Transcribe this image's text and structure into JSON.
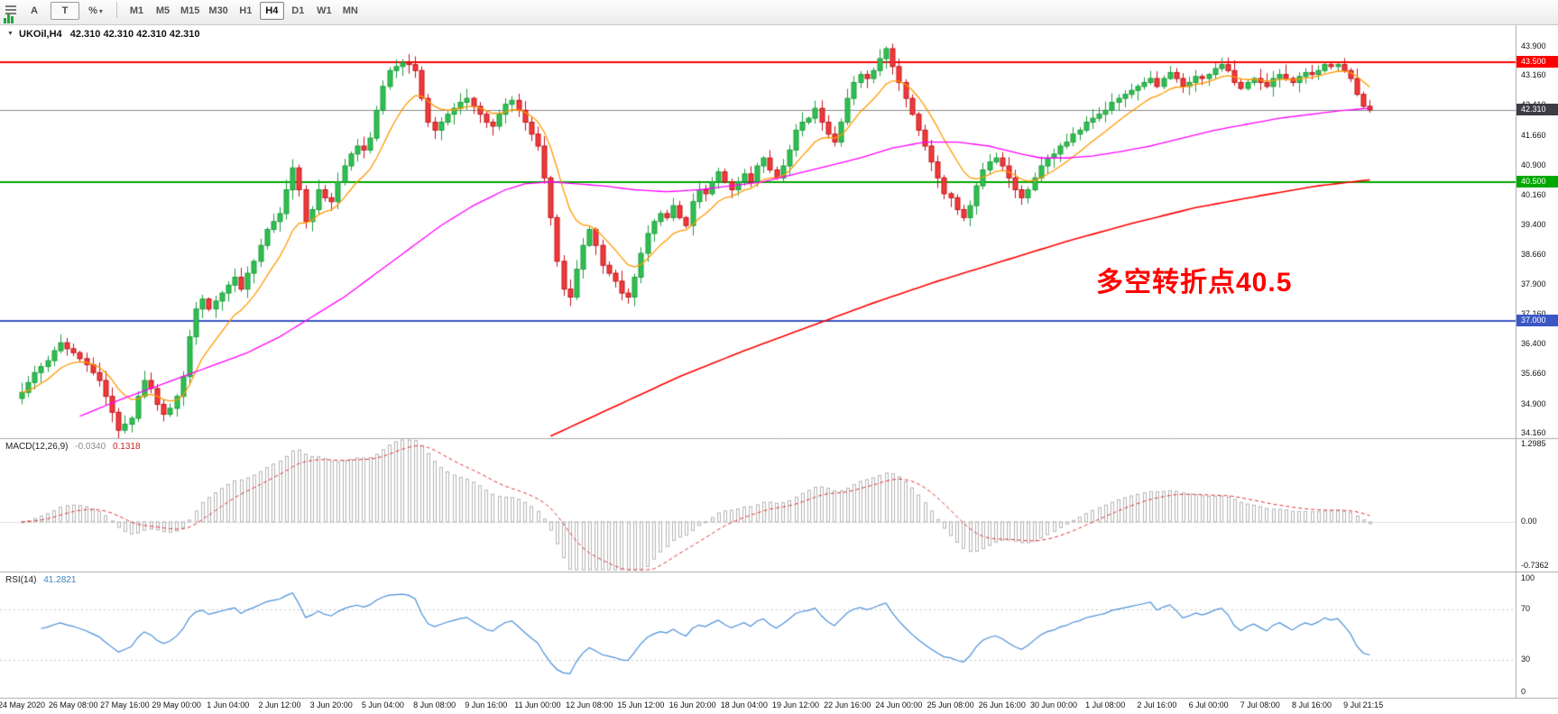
{
  "toolbar": {
    "text_label_button": "A",
    "textbox_button": "T",
    "percent_icon": "%",
    "caret": "▾",
    "timeframes": [
      "M1",
      "M5",
      "M15",
      "M30",
      "H1",
      "H4",
      "D1",
      "W1",
      "MN"
    ],
    "active_timeframe": "H4"
  },
  "chart": {
    "title_marker": "▼",
    "symbol_title": "UKOil,H4",
    "ohlc": "42.310 42.310 42.310 42.310",
    "badges": [
      {
        "value": "43.500",
        "price": 43.5,
        "color": "#ff0000"
      },
      {
        "value": "42.310",
        "price": 42.31,
        "color": "#3c3c46"
      },
      {
        "value": "40.500",
        "price": 40.5,
        "color": "#00a800"
      },
      {
        "value": "37.000",
        "price": 37.0,
        "color": "#3a57c4"
      }
    ]
  },
  "chart_data": {
    "type": "candlestick",
    "symbol": "UKOil",
    "timeframe": "H4",
    "annotation": {
      "text": "多空转折点40.5",
      "color": "#ff0000"
    },
    "price_ticks": [
      "43.900",
      "43.160",
      "42.410",
      "41.660",
      "40.900",
      "40.160",
      "39.400",
      "38.660",
      "37.900",
      "37.160",
      "36.400",
      "35.660",
      "34.900",
      "34.160"
    ],
    "price_ylim": [
      34.05,
      44.44
    ],
    "x_labels": [
      "24 May 2020",
      "26 May 08:00",
      "27 May 16:00",
      "29 May 00:00",
      "1 Jun 04:00",
      "2 Jun 12:00",
      "3 Jun 20:00",
      "5 Jun 04:00",
      "8 Jun 08:00",
      "9 Jun 16:00",
      "11 Jun 00:00",
      "12 Jun 08:00",
      "15 Jun 12:00",
      "16 Jun 20:00",
      "18 Jun 04:00",
      "19 Jun 12:00",
      "22 Jun 16:00",
      "24 Jun 00:00",
      "25 Jun 08:00",
      "26 Jun 16:00",
      "30 Jun 00:00",
      "1 Jul 08:00",
      "2 Jul 16:00",
      "6 Jul 00:00",
      "7 Jul 08:00",
      "8 Jul 16:00",
      "9 Jul 21:15"
    ],
    "bars_per_label": 8,
    "horizontal_lines": [
      {
        "price": 43.5,
        "color": "#ff0000",
        "width": 2
      },
      {
        "price": 42.31,
        "color": "#8a8a8a",
        "width": 1
      },
      {
        "price": 40.5,
        "color": "#00a800",
        "width": 2
      },
      {
        "price": 37.0,
        "color": "#3a57c4",
        "width": 2
      }
    ],
    "candles": {
      "first_open": 35.05,
      "up_color": "#2fbf52",
      "down_color": "#f03a3a",
      "closes": [
        35.2,
        35.45,
        35.7,
        35.85,
        36.0,
        36.25,
        36.45,
        36.3,
        36.2,
        36.05,
        35.9,
        35.7,
        35.5,
        35.1,
        34.7,
        34.25,
        34.4,
        34.55,
        35.1,
        35.5,
        35.3,
        34.9,
        34.65,
        34.8,
        35.1,
        35.6,
        36.6,
        37.3,
        37.55,
        37.3,
        37.5,
        37.7,
        37.9,
        38.1,
        37.8,
        38.2,
        38.5,
        38.9,
        39.3,
        39.5,
        39.7,
        40.3,
        40.85,
        40.3,
        39.5,
        39.8,
        40.3,
        40.1,
        40.0,
        40.5,
        40.9,
        41.2,
        41.4,
        41.3,
        41.6,
        42.3,
        42.9,
        43.3,
        43.4,
        43.5,
        43.45,
        43.3,
        42.6,
        42.0,
        41.8,
        42.0,
        42.2,
        42.35,
        42.5,
        42.6,
        42.4,
        42.2,
        42.0,
        41.9,
        42.2,
        42.45,
        42.55,
        42.3,
        42.0,
        41.7,
        41.4,
        40.6,
        39.6,
        38.5,
        37.8,
        37.6,
        38.3,
        38.9,
        39.3,
        38.9,
        38.4,
        38.2,
        38.0,
        37.7,
        37.6,
        38.1,
        38.7,
        39.2,
        39.5,
        39.7,
        39.6,
        39.9,
        39.6,
        39.4,
        40.0,
        40.3,
        40.2,
        40.5,
        40.75,
        40.5,
        40.3,
        40.5,
        40.7,
        40.5,
        40.9,
        41.1,
        40.8,
        40.6,
        40.9,
        41.3,
        41.8,
        42.0,
        42.1,
        42.35,
        42.0,
        41.7,
        41.5,
        42.0,
        42.6,
        43.0,
        43.2,
        43.1,
        43.3,
        43.6,
        43.85,
        43.4,
        43.0,
        42.6,
        42.2,
        41.8,
        41.4,
        41.0,
        40.6,
        40.2,
        40.1,
        39.8,
        39.6,
        39.9,
        40.4,
        40.8,
        41.0,
        41.1,
        40.9,
        40.6,
        40.3,
        40.1,
        40.3,
        40.6,
        40.9,
        41.1,
        41.2,
        41.4,
        41.5,
        41.7,
        41.8,
        42.0,
        42.1,
        42.2,
        42.3,
        42.5,
        42.6,
        42.7,
        42.8,
        42.9,
        43.0,
        43.1,
        42.9,
        43.1,
        43.25,
        43.1,
        42.9,
        43.0,
        43.15,
        43.1,
        43.2,
        43.35,
        43.45,
        43.3,
        43.0,
        42.85,
        43.0,
        43.1,
        43.0,
        42.9,
        43.1,
        43.2,
        43.1,
        43.0,
        43.15,
        43.25,
        43.2,
        43.3,
        43.45,
        43.4,
        43.45,
        43.3,
        43.1,
        42.7,
        42.4,
        42.31
      ]
    },
    "moving_averages": {
      "fast": {
        "color": "#ff9900",
        "type": "ema",
        "period": 10
      },
      "medium": {
        "color": "#ff00ff",
        "points": [
          [
            9,
            34.6
          ],
          [
            15,
            35.0
          ],
          [
            20,
            35.3
          ],
          [
            25,
            35.6
          ],
          [
            30,
            35.9
          ],
          [
            35,
            36.2
          ],
          [
            40,
            36.6
          ],
          [
            45,
            37.1
          ],
          [
            50,
            37.6
          ],
          [
            55,
            38.2
          ],
          [
            60,
            38.8
          ],
          [
            65,
            39.4
          ],
          [
            70,
            39.9
          ],
          [
            75,
            40.3
          ],
          [
            78,
            40.45
          ],
          [
            82,
            40.5
          ],
          [
            86,
            40.45
          ],
          [
            90,
            40.4
          ],
          [
            95,
            40.3
          ],
          [
            100,
            40.25
          ],
          [
            105,
            40.3
          ],
          [
            110,
            40.4
          ],
          [
            115,
            40.5
          ],
          [
            120,
            40.7
          ],
          [
            125,
            40.9
          ],
          [
            130,
            41.1
          ],
          [
            135,
            41.35
          ],
          [
            140,
            41.5
          ],
          [
            145,
            41.5
          ],
          [
            150,
            41.4
          ],
          [
            155,
            41.2
          ],
          [
            158,
            41.1
          ],
          [
            162,
            41.1
          ],
          [
            166,
            41.15
          ],
          [
            170,
            41.25
          ],
          [
            175,
            41.4
          ],
          [
            180,
            41.6
          ],
          [
            185,
            41.8
          ],
          [
            190,
            41.95
          ],
          [
            195,
            42.1
          ],
          [
            200,
            42.2
          ],
          [
            205,
            42.3
          ],
          [
            209,
            42.35
          ]
        ]
      },
      "slow": {
        "color": "#ff0000",
        "points": [
          [
            82,
            34.1
          ],
          [
            92,
            34.85
          ],
          [
            102,
            35.6
          ],
          [
            112,
            36.25
          ],
          [
            122,
            36.85
          ],
          [
            132,
            37.45
          ],
          [
            142,
            38.0
          ],
          [
            152,
            38.5
          ],
          [
            162,
            39.0
          ],
          [
            172,
            39.45
          ],
          [
            182,
            39.85
          ],
          [
            192,
            40.15
          ],
          [
            201,
            40.4
          ],
          [
            209,
            40.55
          ]
        ]
      }
    },
    "macd": {
      "label": "MACD(12,26,9)",
      "values": [
        "-0.0340",
        "0.1318"
      ],
      "params": [
        12,
        26,
        9
      ],
      "axis_labels": [
        "1.2985",
        "0.00",
        "-0.7362"
      ],
      "ylim": [
        -0.825,
        1.388
      ],
      "histogram_color": "#b4b4b4",
      "signal_color": "#e03333"
    },
    "rsi": {
      "label": "RSI(14)",
      "value": "41.2821",
      "period": 14,
      "axis_labels": [
        "100",
        "70",
        "30",
        "0"
      ],
      "levels": [
        70,
        30
      ],
      "ylim": [
        0,
        100
      ],
      "line_color": "#4a90d9"
    }
  }
}
